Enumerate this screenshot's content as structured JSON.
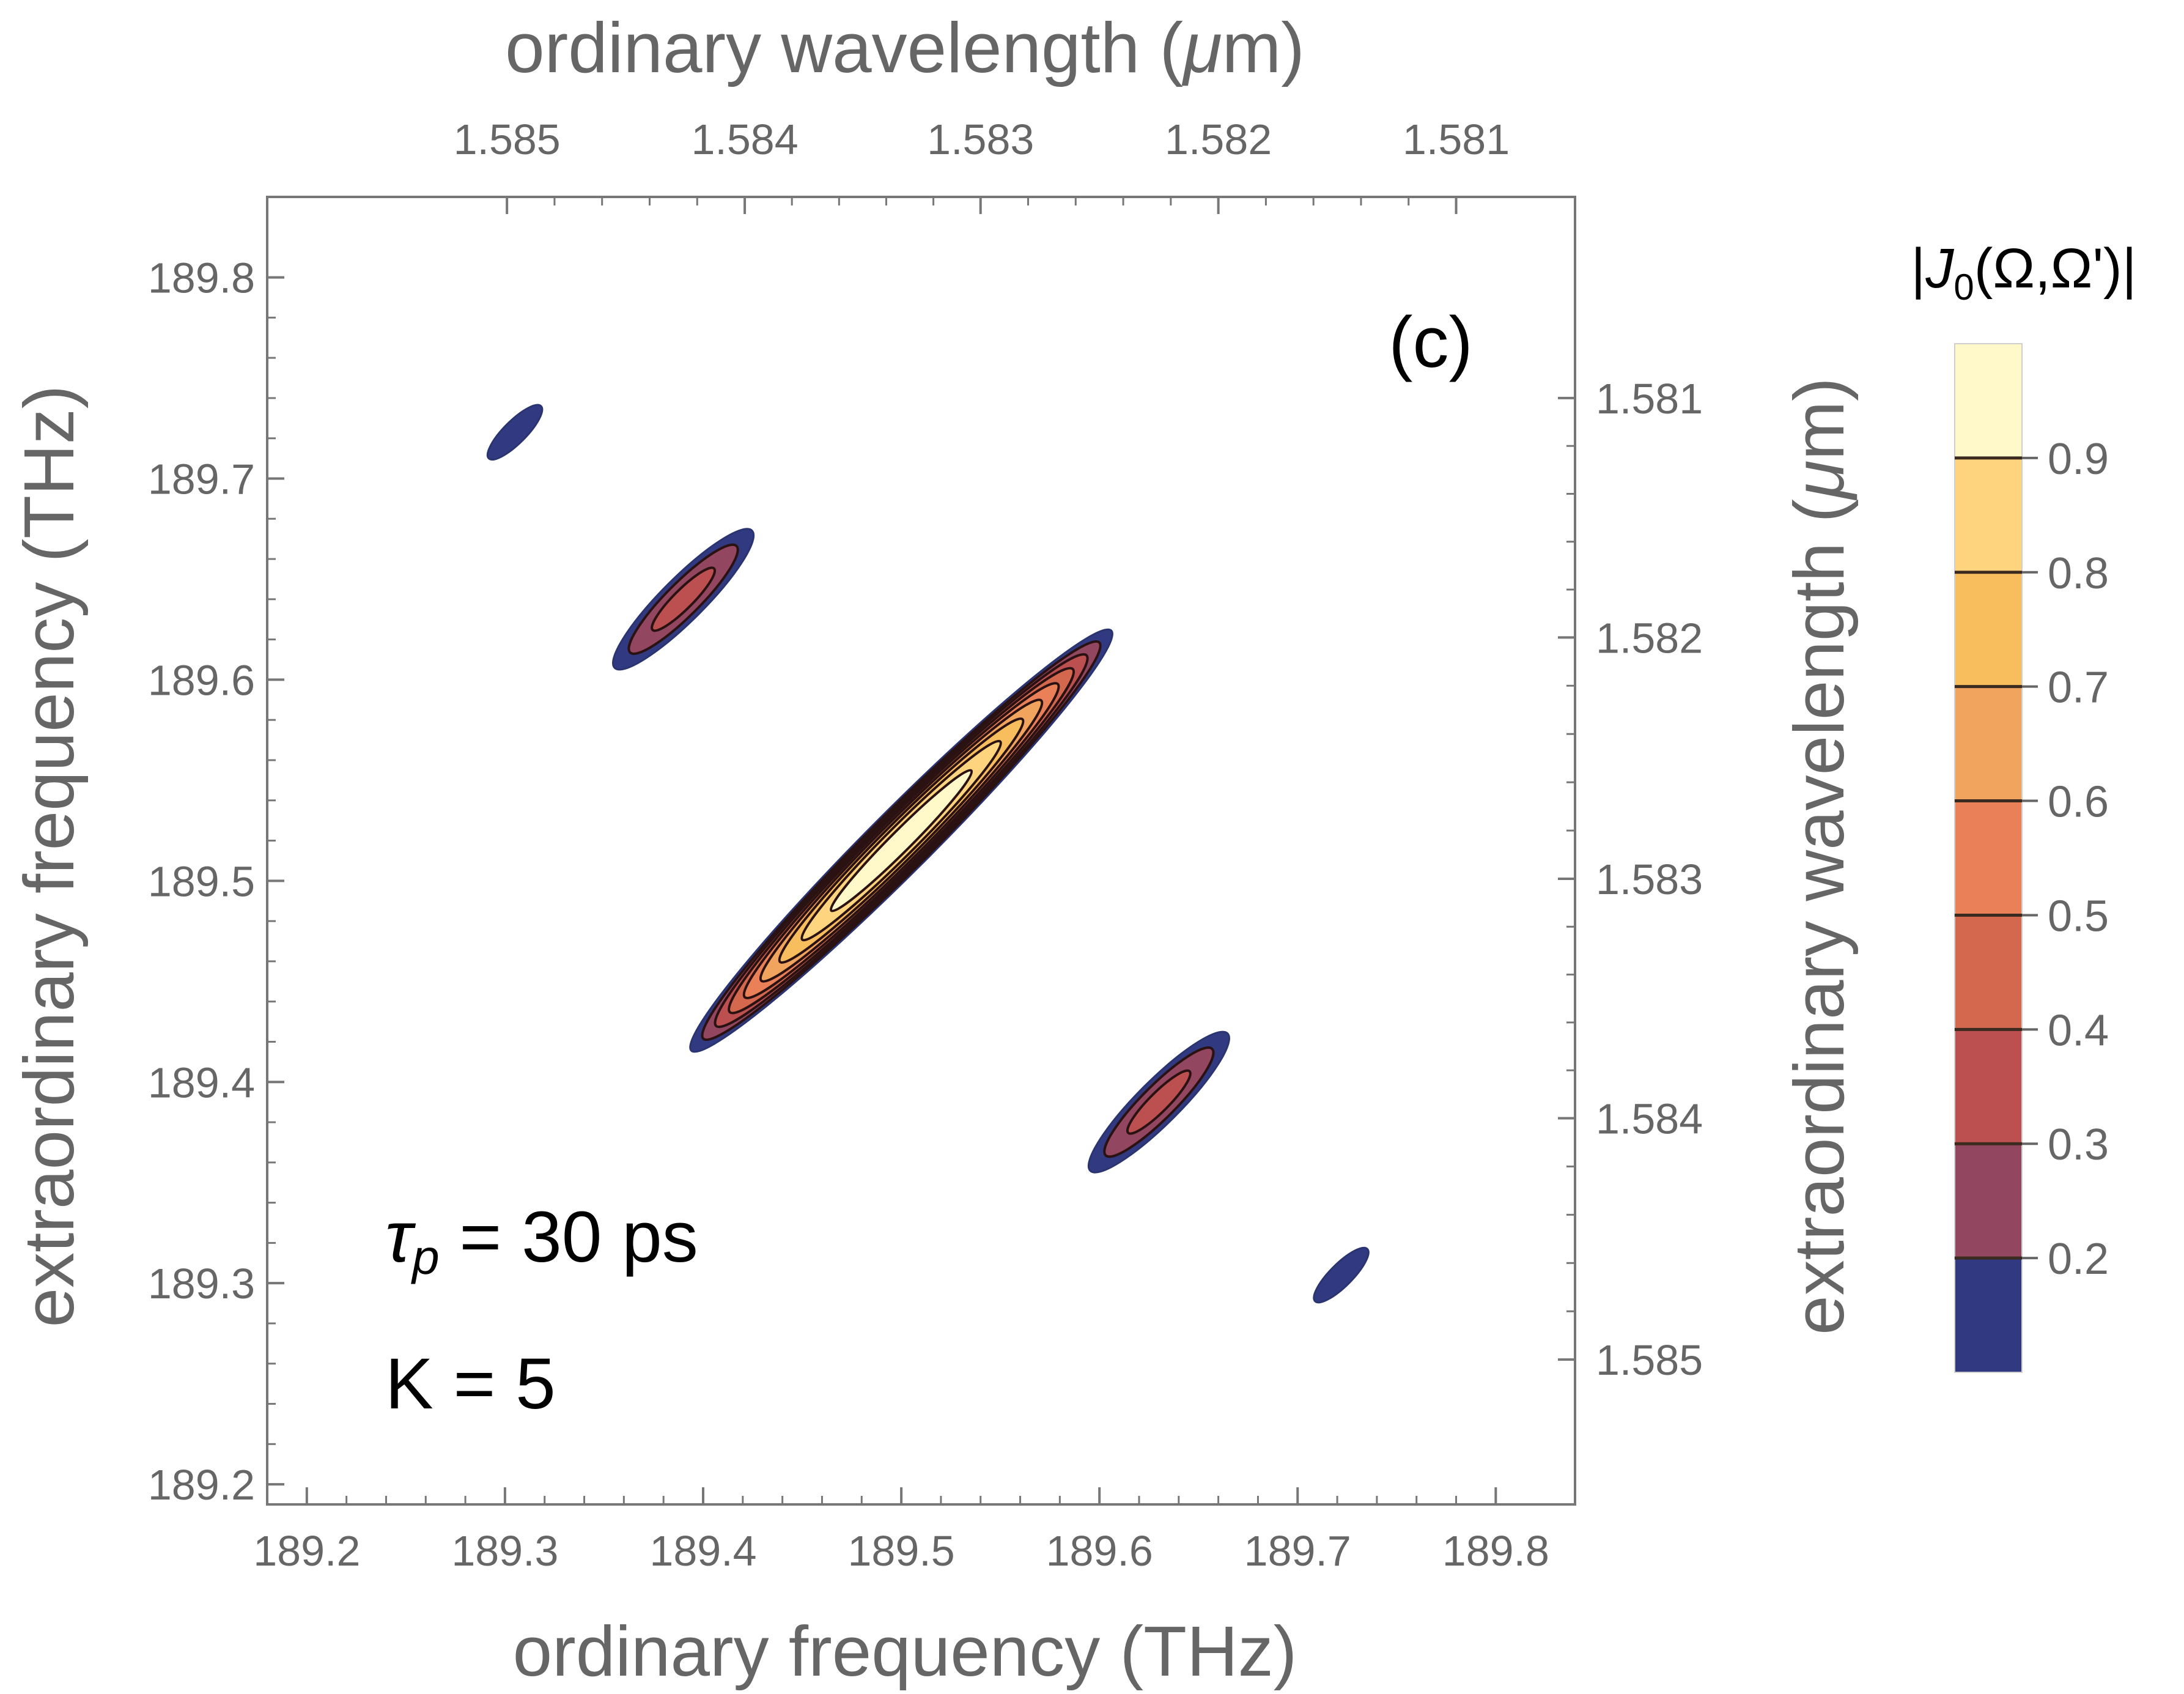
{
  "chart_data": {
    "type": "contour",
    "panel_label": "(c)",
    "x_axis": {
      "label": "ordinary frequency (THz)",
      "range": [
        189.18,
        189.84
      ],
      "ticks": [
        189.2,
        189.3,
        189.4,
        189.5,
        189.6,
        189.7,
        189.8
      ],
      "tick_labels": [
        "189.2",
        "189.3",
        "189.4",
        "189.5",
        "189.6",
        "189.7",
        "189.8"
      ]
    },
    "y_axis": {
      "label": "extraordinary frequency (THz)",
      "range": [
        189.19,
        189.84
      ],
      "ticks": [
        189.2,
        189.3,
        189.4,
        189.5,
        189.6,
        189.7,
        189.8
      ],
      "tick_labels": [
        "189.2",
        "189.3",
        "189.4",
        "189.5",
        "189.6",
        "189.7",
        "189.8"
      ]
    },
    "top_axis": {
      "label_text": "ordinary wavelength (",
      "label_mu": "μ",
      "label_tail": "m)",
      "tick_labels": [
        "1.585",
        "1.584",
        "1.583",
        "1.582",
        "1.581"
      ],
      "tick_positions_thz": [
        189.301,
        189.421,
        189.54,
        189.66,
        189.78
      ]
    },
    "right_axis": {
      "label_text": "extraordinary wavelength (",
      "label_mu": "μ",
      "label_tail": "m)",
      "tick_labels": [
        "1.581",
        "1.582",
        "1.583",
        "1.584",
        "1.585"
      ],
      "tick_positions_thz": [
        189.74,
        189.621,
        189.501,
        189.382,
        189.262
      ]
    },
    "colorbar": {
      "title_pre": "|",
      "title_J": "J",
      "title_sub": "0",
      "title_post": "(Ω,Ω')|",
      "range": [
        0.1,
        1.0
      ],
      "levels": [
        0.2,
        0.3,
        0.4,
        0.5,
        0.6,
        0.7,
        0.8,
        0.9
      ],
      "level_labels": [
        "0.2",
        "0.3",
        "0.4",
        "0.5",
        "0.6",
        "0.7",
        "0.8",
        "0.9"
      ],
      "colors": [
        "#313a80",
        "#924660",
        "#bc4f4f",
        "#d3684e",
        "#ea8058",
        "#f1a45d",
        "#f8bd5d",
        "#fed57e",
        "#fff8c8"
      ]
    },
    "lobes": [
      {
        "center": [
          189.5,
          189.52
        ],
        "semi_major_thz": 0.158,
        "semi_minor_thz": 0.0165,
        "peak": 1.0
      },
      {
        "center": [
          189.39,
          189.64
        ],
        "semi_major_thz": 0.058,
        "semi_minor_thz": 0.0128,
        "peak": 0.35
      },
      {
        "center": [
          189.63,
          189.39
        ],
        "semi_major_thz": 0.058,
        "semi_minor_thz": 0.0128,
        "peak": 0.35
      },
      {
        "center": [
          189.305,
          189.723
        ],
        "semi_major_thz": 0.028,
        "semi_minor_thz": 0.0085,
        "peak": 0.18
      },
      {
        "center": [
          189.722,
          189.304
        ],
        "semi_major_thz": 0.028,
        "semi_minor_thz": 0.0085,
        "peak": 0.18
      }
    ],
    "annotations": {
      "tau_symbol": "τ",
      "tau_sub": "p",
      "tau_value": " = 30 ps",
      "k_text": "K = 5"
    }
  }
}
